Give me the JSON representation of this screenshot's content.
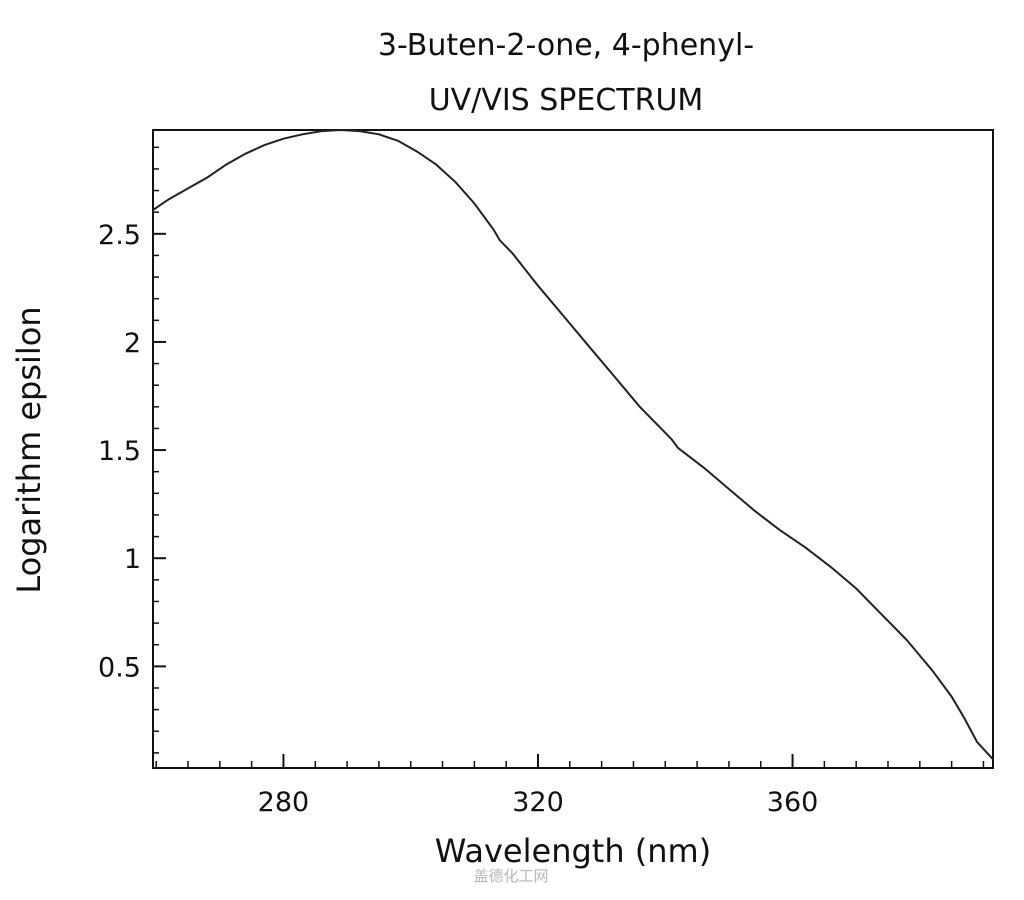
{
  "chart_data": {
    "type": "line",
    "title": "3-Buten-2-one, 4-phenyl-",
    "subtitle": "UV/VIS SPECTRUM",
    "xlabel": "Wavelength (nm)",
    "ylabel": "Logarithm epsilon",
    "xlim": [
      259.5,
      391.5
    ],
    "ylim": [
      0.03,
      2.98
    ],
    "x_ticks": [
      280,
      320,
      360
    ],
    "x_tick_labels": [
      "280",
      "320",
      "360"
    ],
    "y_ticks": [
      0.5,
      1,
      1.5,
      2,
      2.5
    ],
    "y_tick_labels": [
      "0.5",
      "1",
      "1.5",
      "2",
      "2.5"
    ],
    "grid": false,
    "legend": "none",
    "line_color": "#222222",
    "series": [
      {
        "x": [
          259.5,
          262,
          265,
          268,
          271,
          274,
          277,
          280,
          283,
          286,
          289,
          292,
          295,
          298,
          301,
          304,
          307,
          310,
          313,
          314,
          316,
          320,
          324,
          328,
          332,
          336,
          340,
          341,
          342,
          346,
          350,
          354,
          358,
          362,
          366,
          370,
          374,
          378,
          382,
          385,
          387,
          389,
          391.5
        ],
        "values": [
          2.61,
          2.66,
          2.71,
          2.76,
          2.82,
          2.87,
          2.91,
          2.94,
          2.96,
          2.975,
          2.98,
          2.975,
          2.96,
          2.93,
          2.88,
          2.82,
          2.74,
          2.64,
          2.52,
          2.47,
          2.41,
          2.26,
          2.12,
          1.98,
          1.84,
          1.7,
          1.58,
          1.55,
          1.51,
          1.42,
          1.32,
          1.22,
          1.13,
          1.05,
          0.96,
          0.86,
          0.74,
          0.62,
          0.48,
          0.36,
          0.26,
          0.15,
          0.07
        ]
      }
    ]
  },
  "watermark_text": "盖德化工网"
}
